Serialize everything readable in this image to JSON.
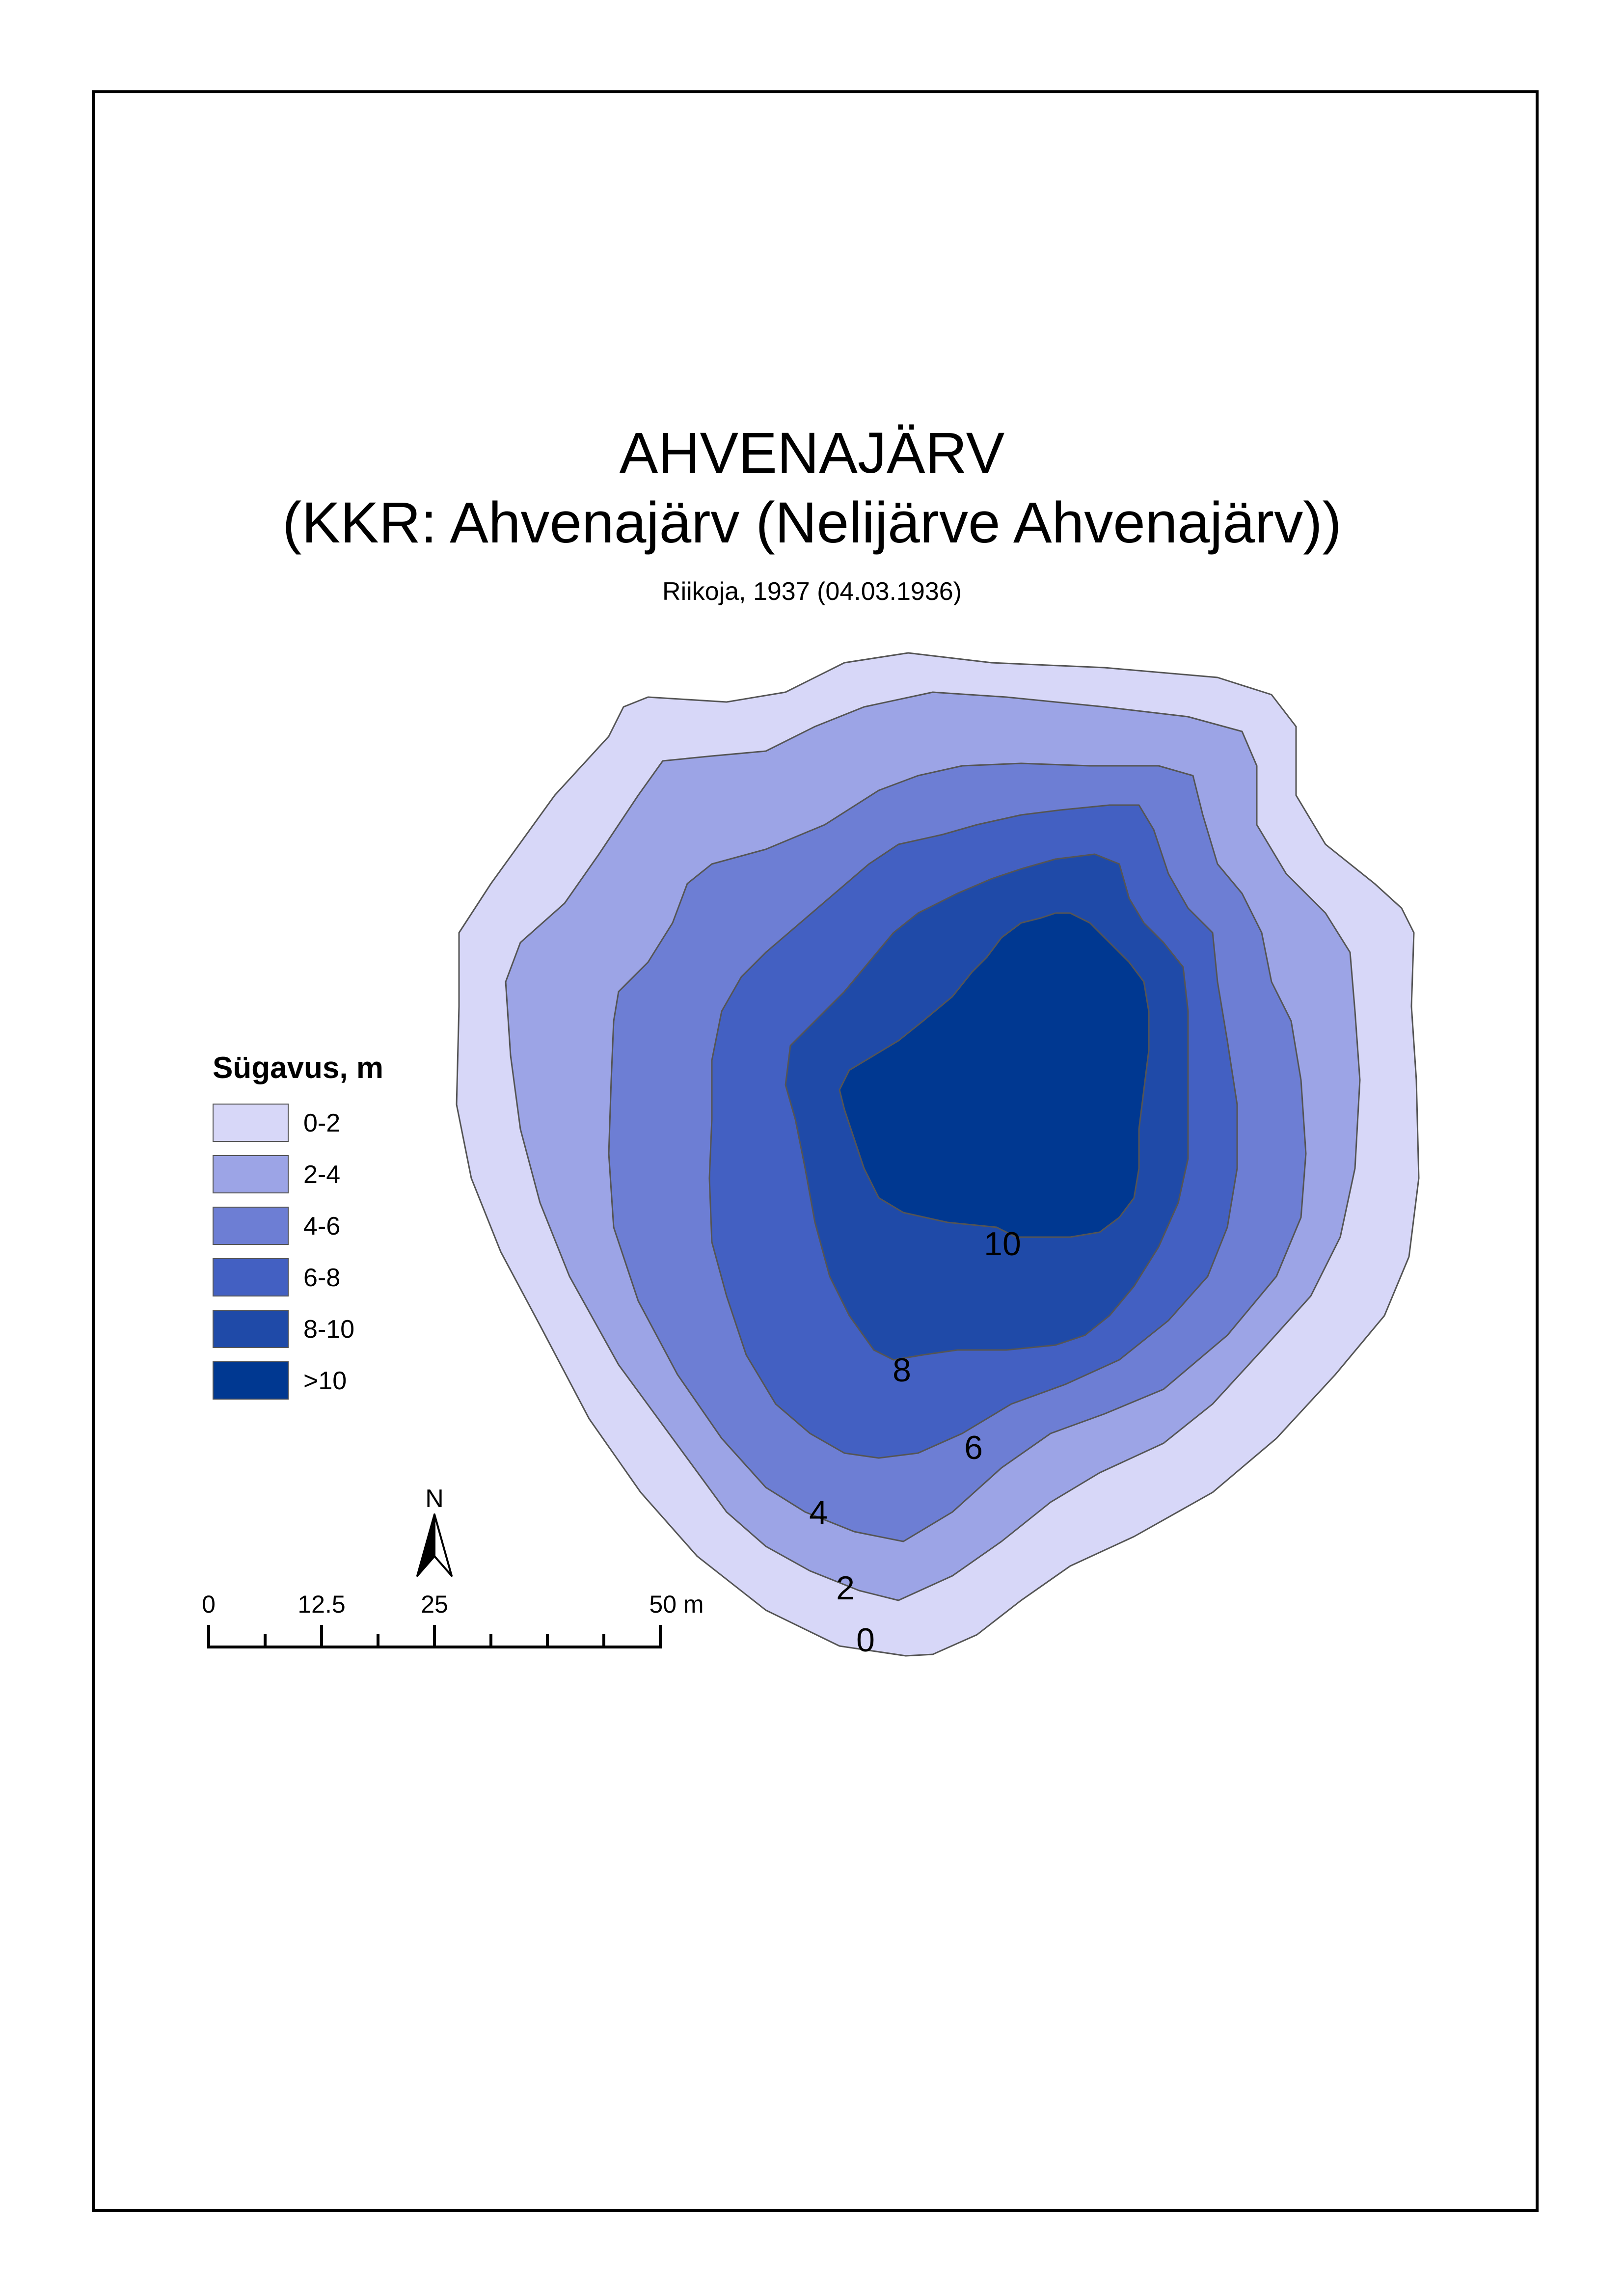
{
  "title": "AHVENAJÄRV",
  "subtitle": "(KKR: Ahvenajärv (Nelijärve Ahvenajärv))",
  "source": "Riikoja, 1937 (04.03.1936)",
  "legend": {
    "title": "Sügavus, m",
    "items": [
      {
        "label": "0-2",
        "color": "#d7d7f8"
      },
      {
        "label": "2-4",
        "color": "#9ca4e6"
      },
      {
        "label": "4-6",
        "color": "#6d7ed4"
      },
      {
        "label": "6-8",
        "color": "#4360c2"
      },
      {
        "label": "8-10",
        "color": "#1f4aa8"
      },
      {
        "label": ">10",
        "color": "#003891"
      }
    ]
  },
  "depth_labels": [
    "0",
    "2",
    "4",
    "6",
    "8",
    "10"
  ],
  "north_arrow": {
    "label": "N"
  },
  "scale_bar": {
    "labels": [
      "0",
      "12.5",
      "25",
      "50 m"
    ]
  }
}
